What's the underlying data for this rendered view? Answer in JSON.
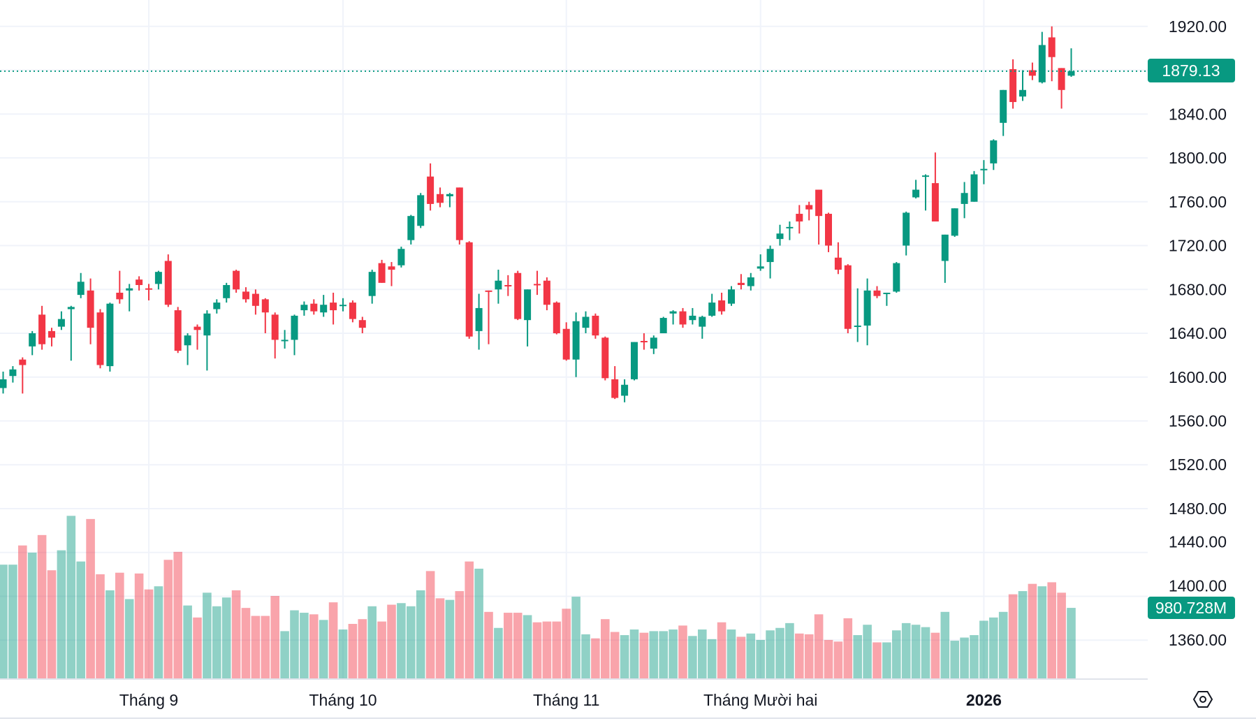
{
  "colors": {
    "up": "#089981",
    "down": "#F23645",
    "grid": "#F0F3FA",
    "text": "#131722",
    "badge": "#089981"
  },
  "chart_data": {
    "type": "candlestick",
    "title": "",
    "ylim": [
      1320,
      1945
    ],
    "y_ticks": [
      "1920.00",
      "1880.00",
      "1840.00",
      "1800.00",
      "1760.00",
      "1720.00",
      "1680.00",
      "1640.00",
      "1600.00",
      "1560.00",
      "1520.00",
      "1480.00",
      "1440.00",
      "1400.00",
      "1360.00"
    ],
    "x_labels": [
      {
        "label": "Tháng 9",
        "index": 15,
        "bold": false
      },
      {
        "label": "Tháng 10",
        "index": 35,
        "bold": false
      },
      {
        "label": "Tháng 11",
        "index": 58,
        "bold": false
      },
      {
        "label": "Tháng Mười hai",
        "index": 78,
        "bold": false
      },
      {
        "label": "2026",
        "index": 101,
        "bold": true
      }
    ],
    "last_price_label": "1879.13",
    "last_volume_label": "980.728M",
    "volume_unit": "M",
    "ohlc": [
      [
        1590,
        1605,
        1585,
        1598
      ],
      [
        1601,
        1610,
        1595,
        1607
      ],
      [
        1616,
        1618,
        1585,
        1611
      ],
      [
        1628,
        1642,
        1620,
        1640
      ],
      [
        1657,
        1665,
        1625,
        1630
      ],
      [
        1642,
        1645,
        1628,
        1636
      ],
      [
        1646,
        1660,
        1643,
        1653
      ],
      [
        1662,
        1665,
        1615,
        1664
      ],
      [
        1675,
        1695,
        1672,
        1687
      ],
      [
        1679,
        1690,
        1630,
        1645
      ],
      [
        1659,
        1662,
        1608,
        1611
      ],
      [
        1610,
        1668,
        1605,
        1667
      ],
      [
        1677,
        1697,
        1667,
        1671
      ],
      [
        1679,
        1685,
        1660,
        1681
      ],
      [
        1689,
        1692,
        1679,
        1684
      ],
      [
        1681,
        1685,
        1670,
        1680
      ],
      [
        1685,
        1697,
        1680,
        1696
      ],
      [
        1706,
        1712,
        1664,
        1666
      ],
      [
        1661,
        1664,
        1622,
        1624
      ],
      [
        1629,
        1640,
        1611,
        1638
      ],
      [
        1646,
        1648,
        1625,
        1643
      ],
      [
        1638,
        1661,
        1606,
        1658
      ],
      [
        1662,
        1671,
        1658,
        1668
      ],
      [
        1672,
        1686,
        1668,
        1684
      ],
      [
        1697,
        1698,
        1677,
        1680
      ],
      [
        1678,
        1682,
        1668,
        1671
      ],
      [
        1676,
        1680,
        1657,
        1665
      ],
      [
        1671,
        1672,
        1640,
        1659
      ],
      [
        1657,
        1659,
        1617,
        1634
      ],
      [
        1633,
        1643,
        1626,
        1634
      ],
      [
        1634,
        1657,
        1620,
        1656
      ],
      [
        1661,
        1669,
        1656,
        1666
      ],
      [
        1667,
        1671,
        1657,
        1660
      ],
      [
        1659,
        1675,
        1655,
        1666
      ],
      [
        1668,
        1677,
        1648,
        1661
      ],
      [
        1665,
        1672,
        1660,
        1666
      ],
      [
        1668,
        1670,
        1650,
        1653
      ],
      [
        1652,
        1655,
        1640,
        1645
      ],
      [
        1674,
        1698,
        1667,
        1696
      ],
      [
        1704,
        1707,
        1686,
        1686
      ],
      [
        1701,
        1705,
        1683,
        1698
      ],
      [
        1702,
        1719,
        1700,
        1717
      ],
      [
        1725,
        1748,
        1721,
        1747
      ],
      [
        1738,
        1768,
        1736,
        1766
      ],
      [
        1783,
        1795,
        1752,
        1758
      ],
      [
        1767,
        1773,
        1755,
        1759
      ],
      [
        1765,
        1768,
        1755,
        1767
      ],
      [
        1773,
        1773,
        1721,
        1725
      ],
      [
        1723,
        1724,
        1635,
        1637
      ],
      [
        1642,
        1676,
        1625,
        1663
      ],
      [
        1679,
        1679,
        1630,
        1678
      ],
      [
        1680,
        1698,
        1667,
        1688
      ],
      [
        1684,
        1693,
        1674,
        1683
      ],
      [
        1695,
        1697,
        1652,
        1653
      ],
      [
        1652,
        1680,
        1628,
        1680
      ],
      [
        1685,
        1697,
        1675,
        1684
      ],
      [
        1688,
        1691,
        1661,
        1666
      ],
      [
        1668,
        1669,
        1639,
        1640
      ],
      [
        1644,
        1650,
        1615,
        1616
      ],
      [
        1616,
        1659,
        1600,
        1651
      ],
      [
        1645,
        1660,
        1640,
        1655
      ],
      [
        1656,
        1658,
        1635,
        1638
      ],
      [
        1636,
        1637,
        1597,
        1599
      ],
      [
        1598,
        1610,
        1580,
        1581
      ],
      [
        1583,
        1598,
        1577,
        1593
      ],
      [
        1598,
        1632,
        1597,
        1632
      ],
      [
        1633,
        1640,
        1625,
        1632
      ],
      [
        1626,
        1638,
        1621,
        1636
      ],
      [
        1640,
        1655,
        1640,
        1654
      ],
      [
        1658,
        1661,
        1648,
        1660
      ],
      [
        1660,
        1663,
        1645,
        1648
      ],
      [
        1652,
        1663,
        1648,
        1656
      ],
      [
        1646,
        1656,
        1635,
        1655
      ],
      [
        1656,
        1676,
        1655,
        1668
      ],
      [
        1670,
        1677,
        1657,
        1660
      ],
      [
        1667,
        1683,
        1665,
        1680
      ],
      [
        1686,
        1694,
        1680,
        1684
      ],
      [
        1683,
        1695,
        1679,
        1691
      ],
      [
        1699,
        1712,
        1697,
        1701
      ],
      [
        1705,
        1720,
        1690,
        1717
      ],
      [
        1726,
        1739,
        1720,
        1731
      ],
      [
        1736,
        1742,
        1725,
        1737
      ],
      [
        1749,
        1757,
        1731,
        1742
      ],
      [
        1757,
        1760,
        1743,
        1753
      ],
      [
        1771,
        1771,
        1721,
        1747
      ],
      [
        1749,
        1750,
        1714,
        1720
      ],
      [
        1709,
        1723,
        1694,
        1698
      ],
      [
        1702,
        1703,
        1640,
        1644
      ],
      [
        1646,
        1681,
        1632,
        1647
      ],
      [
        1647,
        1690,
        1629,
        1679
      ],
      [
        1679,
        1683,
        1672,
        1674
      ],
      [
        1676,
        1677,
        1665,
        1677
      ],
      [
        1678,
        1705,
        1677,
        1704
      ],
      [
        1720,
        1751,
        1711,
        1750
      ],
      [
        1764,
        1780,
        1763,
        1771
      ],
      [
        1783,
        1785,
        1752,
        1784
      ],
      [
        1777,
        1805,
        1742,
        1742
      ],
      [
        1706,
        1730,
        1686,
        1730
      ],
      [
        1729,
        1754,
        1728,
        1754
      ],
      [
        1758,
        1778,
        1745,
        1768
      ],
      [
        1760,
        1788,
        1760,
        1785
      ],
      [
        1789,
        1798,
        1776,
        1790
      ],
      [
        1795,
        1817,
        1789,
        1816
      ],
      [
        1832,
        1862,
        1820,
        1862
      ],
      [
        1881,
        1890,
        1845,
        1851
      ],
      [
        1856,
        1880,
        1852,
        1862
      ],
      [
        1880,
        1887,
        1871,
        1875
      ],
      [
        1869,
        1915,
        1868,
        1903
      ],
      [
        1910,
        1920,
        1870,
        1892
      ],
      [
        1882,
        1882,
        1845,
        1862
      ],
      [
        1875,
        1900,
        1874,
        1879.13
      ]
    ],
    "volume": [
      1582,
      1582,
      1849,
      1749,
      1994,
      1504,
      1782,
      2261,
      1626,
      2217,
      1448,
      1225,
      1470,
      1103,
      1459,
      1237,
      1281,
      1649,
      1760,
      1014,
      847,
      1192,
      1003,
      1125,
      1225,
      980,
      869,
      869,
      1147,
      657,
      947,
      913,
      891,
      813,
      1058,
      680,
      758,
      824,
      1003,
      791,
      1025,
      1047,
      1003,
      1225,
      1493,
      1114,
      1092,
      1214,
      1626,
      1526,
      925,
      702,
      913,
      913,
      880,
      780,
      791,
      791,
      969,
      1136,
      613,
      557,
      824,
      646,
      602,
      680,
      635,
      657,
      657,
      680,
      735,
      590,
      680,
      546,
      780,
      680,
      579,
      624,
      535,
      668,
      702,
      769,
      624,
      613,
      891,
      535,
      512,
      836,
      602,
      746,
      501,
      501,
      668,
      769,
      746,
      713,
      635,
      925,
      524,
      568,
      602,
      802,
      847,
      925,
      1170,
      1214,
      1315,
      1281,
      1337,
      1192,
      980.728
    ]
  },
  "ui": {
    "settings_icon": "hexagon-gear-icon"
  }
}
